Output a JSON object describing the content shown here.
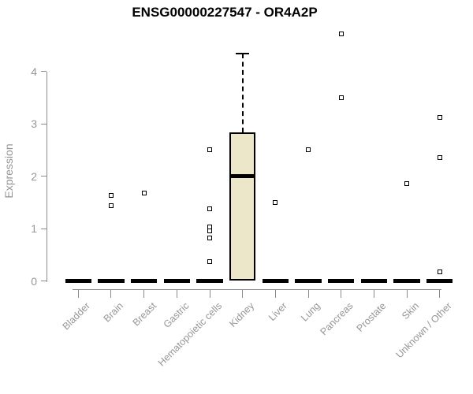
{
  "title": "ENSG00000227547 - OR4A2P",
  "colors": {
    "box_fill": "#ece7c9",
    "box_border": "#000000",
    "median": "#000000",
    "axis": "#8c8c8c",
    "axis_text": "#969696",
    "title_text": "#000000",
    "outlier_border": "#000000",
    "background": "#ffffff"
  },
  "chart_data": {
    "type": "boxplot",
    "title": "ENSG00000227547 - OR4A2P",
    "xlabel": "",
    "ylabel": "Expression",
    "ylim": [
      0,
      4.75
    ],
    "yticks": [
      0,
      1,
      2,
      3,
      4
    ],
    "grid": false,
    "legend": false,
    "categories": [
      "Bladder",
      "Brain",
      "Breast",
      "Gastric",
      "Hematopoietic cells",
      "Kidney",
      "Liver",
      "Lung",
      "Pancreas",
      "Prostate",
      "Skin",
      "Unknown / Other"
    ],
    "series": [
      {
        "name": "Bladder",
        "q1": 0,
        "median": 0,
        "q3": 0,
        "whisker_low": 0,
        "whisker_high": 0,
        "outliers": []
      },
      {
        "name": "Brain",
        "q1": 0,
        "median": 0,
        "q3": 0,
        "whisker_low": 0,
        "whisker_high": 0,
        "outliers": [
          1.63,
          1.44
        ]
      },
      {
        "name": "Breast",
        "q1": 0,
        "median": 0,
        "q3": 0,
        "whisker_low": 0,
        "whisker_high": 0,
        "outliers": [
          1.68
        ]
      },
      {
        "name": "Gastric",
        "q1": 0,
        "median": 0,
        "q3": 0,
        "whisker_low": 0,
        "whisker_high": 0,
        "outliers": []
      },
      {
        "name": "Hematopoietic cells",
        "q1": 0,
        "median": 0,
        "q3": 0,
        "whisker_low": 0,
        "whisker_high": 0,
        "outliers": [
          2.5,
          1.38,
          1.03,
          0.95,
          0.82,
          0.37
        ]
      },
      {
        "name": "Kidney",
        "q1": 0,
        "median": 2.0,
        "q3": 2.84,
        "whisker_low": 0,
        "whisker_high": 4.34,
        "outliers": []
      },
      {
        "name": "Liver",
        "q1": 0,
        "median": 0,
        "q3": 0,
        "whisker_low": 0,
        "whisker_high": 0,
        "outliers": [
          1.5
        ]
      },
      {
        "name": "Lung",
        "q1": 0,
        "median": 0,
        "q3": 0,
        "whisker_low": 0,
        "whisker_high": 0,
        "outliers": [
          2.5
        ]
      },
      {
        "name": "Pancreas",
        "q1": 0,
        "median": 0,
        "q3": 0,
        "whisker_low": 0,
        "whisker_high": 0,
        "outliers": [
          4.72,
          3.5
        ]
      },
      {
        "name": "Prostate",
        "q1": 0,
        "median": 0,
        "q3": 0,
        "whisker_low": 0,
        "whisker_high": 0,
        "outliers": []
      },
      {
        "name": "Skin",
        "q1": 0,
        "median": 0,
        "q3": 0,
        "whisker_low": 0,
        "whisker_high": 0,
        "outliers": [
          1.86
        ]
      },
      {
        "name": "Unknown / Other",
        "q1": 0,
        "median": 0,
        "q3": 0,
        "whisker_low": 0,
        "whisker_high": 0,
        "outliers": [
          3.12,
          2.36,
          0.17
        ]
      }
    ]
  }
}
